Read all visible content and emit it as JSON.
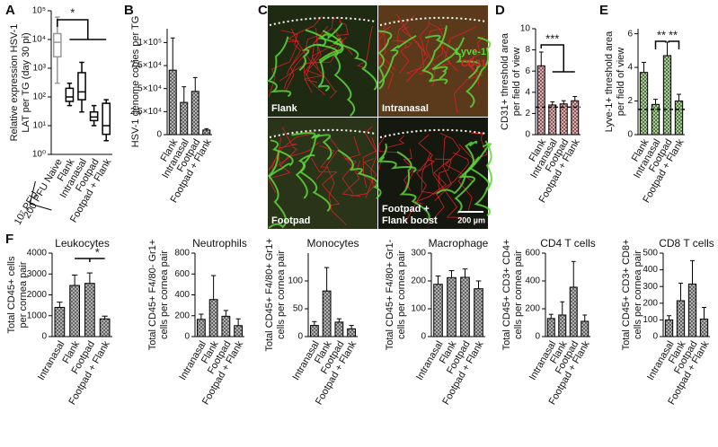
{
  "panel_labels": [
    "A",
    "B",
    "C",
    "D",
    "E",
    "F"
  ],
  "micrograph": {
    "tiles": [
      [
        "Flank"
      ],
      [
        "Intranasal"
      ],
      [
        "Footpad"
      ],
      [
        "Footpad +",
        "Flank boost"
      ]
    ],
    "legend": [
      "Lyve-1",
      "CD31"
    ],
    "scale_bar": "200 µm"
  },
  "chart_data": [
    {
      "type": "box",
      "log_scale": true,
      "ylabel": [
        "Relative expression HSV-1",
        "LAT per TG (day 30 pi)"
      ],
      "categories": [
        "200 PFU Naive",
        "Flank",
        "Intranasal",
        "Footpad",
        "Footpad + Flank"
      ],
      "group_label": "10⁷ PFU",
      "colors": [
        "#999999",
        "#000000",
        "#000000",
        "#000000",
        "#000000"
      ],
      "boxes": [
        {
          "min": 300,
          "q1": 2500,
          "median": 8000,
          "q3": 16000,
          "max": 60000
        },
        {
          "min": 50,
          "q1": 70,
          "median": 100,
          "q3": 200,
          "max": 300
        },
        {
          "min": 30,
          "q1": 80,
          "median": 150,
          "q3": 700,
          "max": 1600
        },
        {
          "min": 10,
          "q1": 15,
          "median": 20,
          "q3": 30,
          "max": 50
        },
        {
          "min": 3,
          "q1": 5,
          "median": 10,
          "q3": 60,
          "max": 80
        }
      ],
      "ylim": [
        1,
        100000
      ],
      "yticks": [
        {
          "value": 1,
          "label": "10⁰"
        },
        {
          "value": 10,
          "label": "10¹"
        },
        {
          "value": 100,
          "label": "10²"
        },
        {
          "value": 1000,
          "label": "10³"
        },
        {
          "value": 10000,
          "label": "10⁴"
        },
        {
          "value": 100000,
          "label": "10⁵"
        }
      ],
      "annotations": [
        "*"
      ]
    },
    {
      "type": "bar",
      "ylabel": [
        "HSV-1 genome copies per  TG"
      ],
      "color": "#bbbbbb",
      "categories": [
        "Flank",
        "Intranasal",
        "Footpad",
        "Footpad + Flank"
      ],
      "values": [
        70000,
        35000,
        47000,
        5000
      ],
      "errors": [
        35000,
        17000,
        15000,
        1500
      ],
      "ylim": [
        0,
        115000
      ],
      "yticks": [
        0,
        {
          "value": 25000,
          "label": "2.5×10⁴"
        },
        {
          "value": 50000,
          "label": "5×10⁴"
        },
        {
          "value": 75000,
          "label": "7.5×10⁴"
        },
        {
          "value": 100000,
          "label": "1×10⁵"
        }
      ],
      "annotations": []
    },
    {
      "type": "bar",
      "ylabel": [
        "CD31+ threshold area",
        "per field of view"
      ],
      "color": "#f4b0b0",
      "categories": [
        "Flank",
        "Intranasal",
        "Footpad",
        "Footpad + Flank"
      ],
      "values": [
        6.5,
        2.8,
        2.9,
        3.2
      ],
      "errors": [
        1.3,
        0.3,
        0.3,
        0.4
      ],
      "reference_line": 2.6,
      "ylim": [
        0,
        10
      ],
      "yticks": [
        0,
        2,
        4,
        6,
        8,
        10
      ],
      "annotations": [
        "***"
      ]
    },
    {
      "type": "bar",
      "ylabel": [
        "Lyve-1+ threshold area",
        "per field of view"
      ],
      "color": "#a8dc90",
      "categories": [
        "Flank",
        "Intranasal",
        "Footpad",
        "Footpad + Flank"
      ],
      "values": [
        3.7,
        1.8,
        4.7,
        2.0
      ],
      "errors": [
        0.6,
        0.3,
        0.8,
        0.4
      ],
      "reference_line": 1.5,
      "ylim": [
        0,
        6.3
      ],
      "yticks": [
        0,
        2,
        4,
        6
      ],
      "annotations": [
        "**",
        "**"
      ]
    },
    {
      "type": "bar",
      "title": "Leukocytes",
      "ylabel": [
        "Total  CD45+ cells",
        "per cornea pair"
      ],
      "color": "#bbbbbb",
      "categories": [
        "Intranasal",
        "Flank",
        "Footpad",
        "Footpad + Flank"
      ],
      "values": [
        1400,
        2450,
        2550,
        850
      ],
      "errors": [
        250,
        500,
        500,
        130
      ],
      "ylim": [
        0,
        4000
      ],
      "yticks": [
        0,
        1000,
        2000,
        3000,
        4000
      ],
      "annotations": [
        "*"
      ]
    },
    {
      "type": "bar",
      "title": "Neutrophils",
      "ylabel": [
        "Total CD45+ F4/80- Gr1+",
        "cells per cornea pair"
      ],
      "color": "#bbbbbb",
      "categories": [
        "Intranasal",
        "Flank",
        "Footpad",
        "Footpad + Flank"
      ],
      "values": [
        165,
        355,
        195,
        105
      ],
      "errors": [
        50,
        230,
        55,
        65
      ],
      "ylim": [
        0,
        800
      ],
      "yticks": [
        0,
        200,
        400,
        600,
        800
      ],
      "annotations": []
    },
    {
      "type": "bar",
      "title": "Monocytes",
      "ylabel": [
        "Total CD45+ F4/80+ Gr1+",
        "cells per cornea pair"
      ],
      "color": "#bbbbbb",
      "categories": [
        "Intranasal",
        "Flank",
        "Footpad",
        "Footpad + Flank"
      ],
      "values": [
        20,
        82,
        26,
        14
      ],
      "errors": [
        7,
        42,
        6,
        6
      ],
      "ylim": [
        0,
        150
      ],
      "yticks": [
        0,
        50,
        100
      ],
      "annotations": []
    },
    {
      "type": "bar",
      "title": "Macrophage",
      "ylabel": [
        "Total CD45+ F4/80+ Gr1-",
        "cells per cornea pair"
      ],
      "color": "#bbbbbb",
      "categories": [
        "Intranasal",
        "Flank",
        "Footpad",
        "Footpad + Flank"
      ],
      "values": [
        188,
        212,
        213,
        172
      ],
      "errors": [
        30,
        25,
        30,
        28
      ],
      "ylim": [
        0,
        300
      ],
      "yticks": [
        0,
        100,
        200,
        300
      ],
      "annotations": []
    },
    {
      "type": "bar",
      "title": "CD4 T cells",
      "ylabel": [
        "Total  CD45+ CD3+  CD4+",
        "cells per cornea pair"
      ],
      "color": "#bbbbbb",
      "categories": [
        "Intranasal",
        "Flank",
        "Footpad",
        "Footpad + Flank"
      ],
      "values": [
        130,
        155,
        355,
        110
      ],
      "errors": [
        30,
        95,
        185,
        45
      ],
      "ylim": [
        0,
        600
      ],
      "yticks": [
        0,
        200,
        400,
        600
      ],
      "annotations": []
    },
    {
      "type": "bar",
      "title": "CD8 T cells",
      "ylabel": [
        "Total CD45+ CD3+ CD8+",
        "cells per cornea pair"
      ],
      "color": "#bbbbbb",
      "categories": [
        "Intranasal",
        "Flank",
        "Footpad",
        "Footpad + Flank"
      ],
      "values": [
        100,
        215,
        315,
        105
      ],
      "errors": [
        25,
        105,
        140,
        70
      ],
      "ylim": [
        0,
        500
      ],
      "yticks": [
        0,
        100,
        200,
        300,
        400,
        500
      ],
      "annotations": []
    }
  ]
}
